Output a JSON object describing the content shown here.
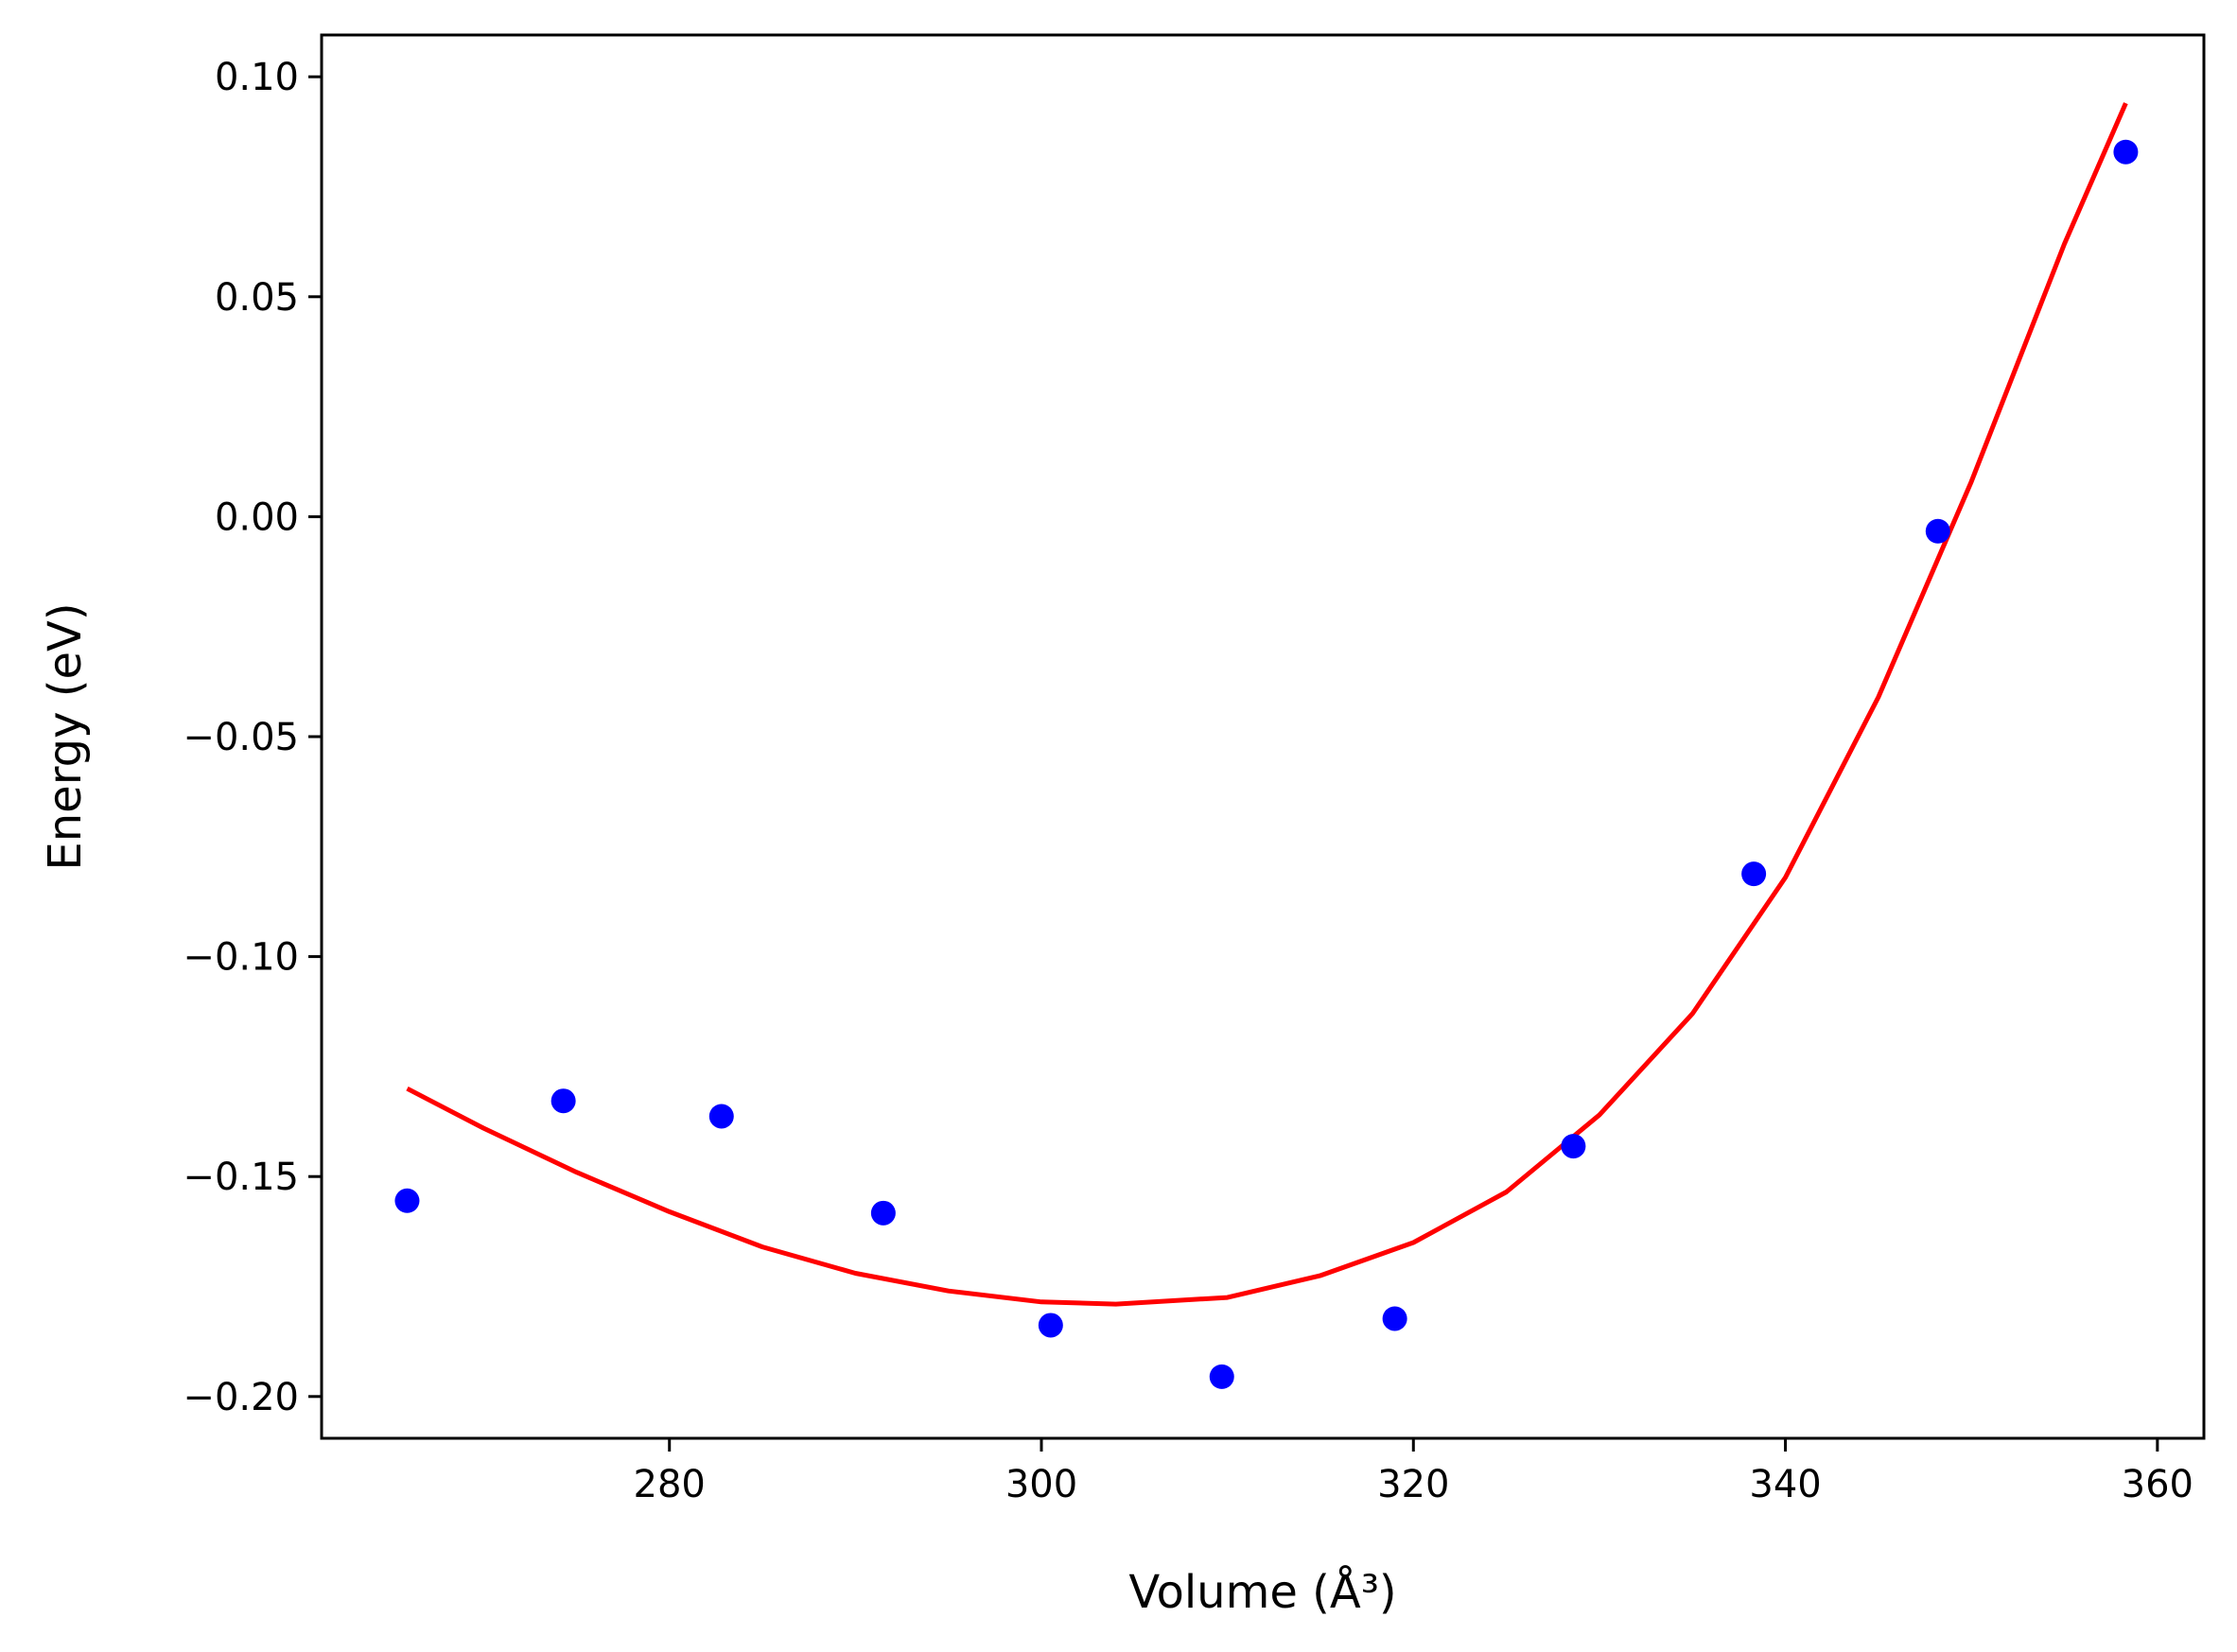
{
  "chart_data": {
    "type": "scatter",
    "title": "",
    "xlabel": "Volume (Å³)",
    "ylabel": "Energy (eV)",
    "xlim": [
      261.3,
      362.5
    ],
    "ylim": [
      -0.2095,
      0.1095
    ],
    "grid": false,
    "x_ticks": [
      280,
      300,
      320,
      340,
      360
    ],
    "x_tick_labels": [
      "280",
      "300",
      "320",
      "340",
      "360"
    ],
    "y_ticks": [
      0.1,
      0.05,
      0.0,
      -0.05,
      -0.1,
      -0.15,
      -0.2
    ],
    "y_tick_labels": [
      "0.10",
      "0.05",
      "0.00",
      "−0.05",
      "−0.10",
      "−0.15",
      "−0.20"
    ],
    "series": [
      {
        "type": "scatter",
        "color": "#0000ff",
        "points": [
          {
            "x": 265.9,
            "y": -0.1555
          },
          {
            "x": 274.3,
            "y": -0.1328
          },
          {
            "x": 282.8,
            "y": -0.1363
          },
          {
            "x": 291.5,
            "y": -0.1583
          },
          {
            "x": 300.5,
            "y": -0.1838
          },
          {
            "x": 309.7,
            "y": -0.1955
          },
          {
            "x": 319.0,
            "y": -0.1823
          },
          {
            "x": 328.6,
            "y": -0.1431
          },
          {
            "x": 338.3,
            "y": -0.0812
          },
          {
            "x": 348.2,
            "y": -0.0033
          },
          {
            "x": 358.3,
            "y": 0.0829
          }
        ]
      },
      {
        "type": "line",
        "color": "#ff0000",
        "points": [
          {
            "x": 265.9,
            "y": -0.13
          },
          {
            "x": 270.0,
            "y": -0.139
          },
          {
            "x": 275.0,
            "y": -0.149
          },
          {
            "x": 280.0,
            "y": -0.158
          },
          {
            "x": 285.0,
            "y": -0.166
          },
          {
            "x": 290.0,
            "y": -0.172
          },
          {
            "x": 295.0,
            "y": -0.176
          },
          {
            "x": 300.0,
            "y": -0.1785
          },
          {
            "x": 304.0,
            "y": -0.179
          },
          {
            "x": 310.0,
            "y": -0.1775
          },
          {
            "x": 315.0,
            "y": -0.1725
          },
          {
            "x": 320.0,
            "y": -0.165
          },
          {
            "x": 325.0,
            "y": -0.1535
          },
          {
            "x": 330.0,
            "y": -0.136
          },
          {
            "x": 335.0,
            "y": -0.113
          },
          {
            "x": 340.0,
            "y": -0.082
          },
          {
            "x": 345.0,
            "y": -0.041
          },
          {
            "x": 350.0,
            "y": 0.008
          },
          {
            "x": 355.0,
            "y": 0.062
          },
          {
            "x": 358.3,
            "y": 0.094
          }
        ]
      }
    ]
  }
}
